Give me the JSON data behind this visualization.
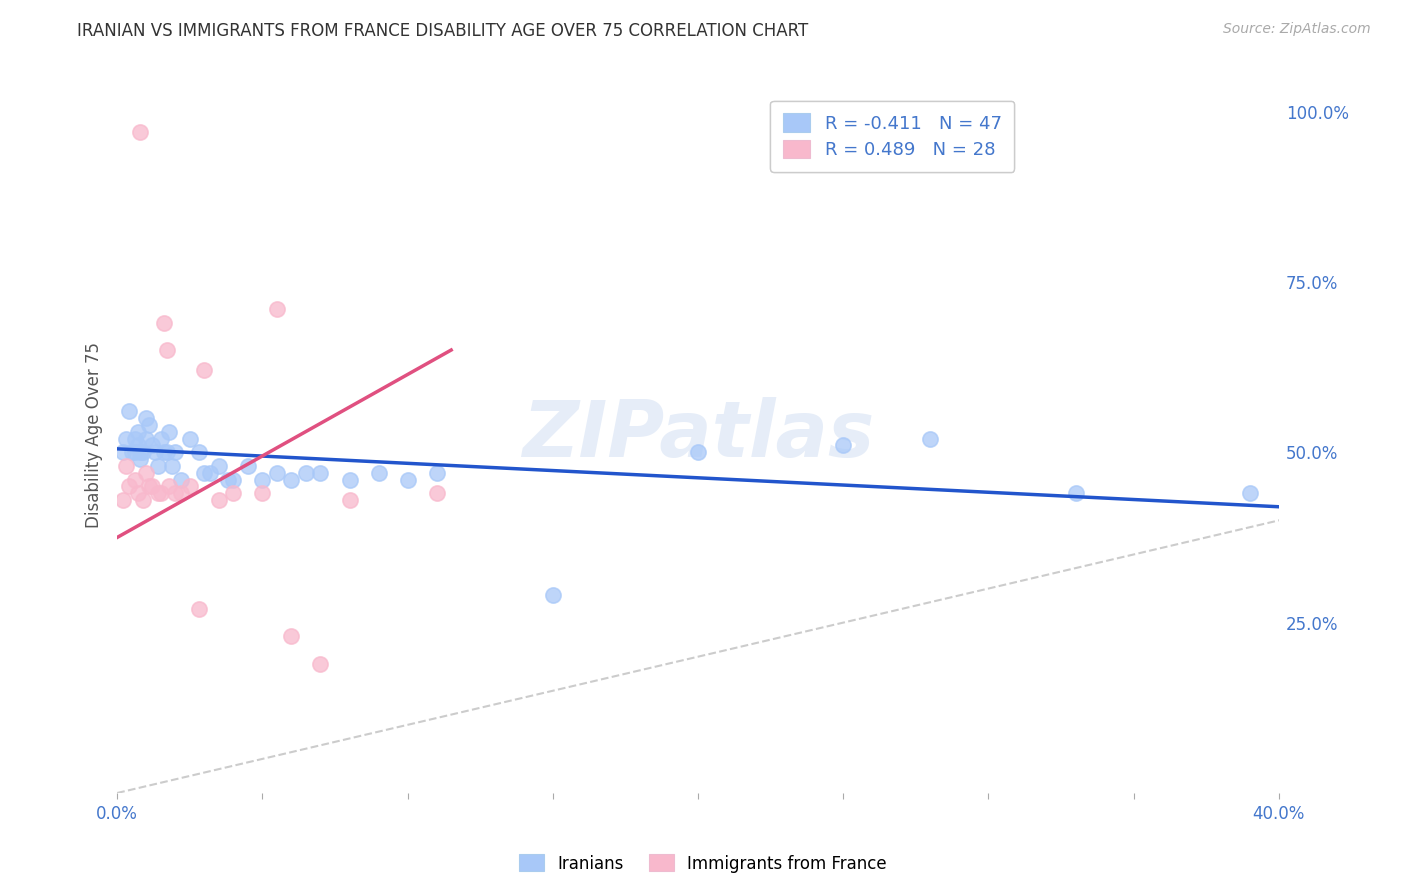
{
  "title": "IRANIAN VS IMMIGRANTS FROM FRANCE DISABILITY AGE OVER 75 CORRELATION CHART",
  "source": "Source: ZipAtlas.com",
  "ylabel": "Disability Age Over 75",
  "xlim": [
    0.0,
    0.4
  ],
  "ylim": [
    0.0,
    1.05
  ],
  "x_ticks": [
    0.0,
    0.05,
    0.1,
    0.15,
    0.2,
    0.25,
    0.3,
    0.35,
    0.4
  ],
  "x_tick_labels": [
    "0.0%",
    "",
    "",
    "",
    "",
    "",
    "",
    "",
    "40.0%"
  ],
  "y_ticks_right": [
    0.25,
    0.5,
    0.75,
    1.0
  ],
  "y_tick_labels_right": [
    "25.0%",
    "50.0%",
    "75.0%",
    "100.0%"
  ],
  "legend_entries": [
    {
      "label": "R = -0.411   N = 47",
      "color": "#a8c8f8"
    },
    {
      "label": "R = 0.489   N = 28",
      "color": "#f8b8cc"
    }
  ],
  "legend_labels_bottom": [
    "Iranians",
    "Immigrants from France"
  ],
  "iranians_color": "#a8c8f8",
  "france_color": "#f8b8cc",
  "trendline_iran_color": "#2255cc",
  "trendline_france_color": "#e05080",
  "diagonal_color": "#cccccc",
  "background_color": "#ffffff",
  "watermark": "ZIPatlas",
  "iranians_x": [
    0.002,
    0.003,
    0.004,
    0.005,
    0.006,
    0.006,
    0.007,
    0.007,
    0.008,
    0.008,
    0.009,
    0.01,
    0.01,
    0.011,
    0.012,
    0.013,
    0.014,
    0.015,
    0.016,
    0.017,
    0.018,
    0.019,
    0.02,
    0.022,
    0.025,
    0.028,
    0.03,
    0.032,
    0.035,
    0.038,
    0.04,
    0.045,
    0.05,
    0.055,
    0.06,
    0.065,
    0.07,
    0.08,
    0.09,
    0.1,
    0.11,
    0.15,
    0.2,
    0.25,
    0.28,
    0.33,
    0.39
  ],
  "iranians_y": [
    0.5,
    0.52,
    0.56,
    0.5,
    0.5,
    0.52,
    0.51,
    0.53,
    0.5,
    0.49,
    0.5,
    0.55,
    0.52,
    0.54,
    0.51,
    0.5,
    0.48,
    0.52,
    0.5,
    0.5,
    0.53,
    0.48,
    0.5,
    0.46,
    0.52,
    0.5,
    0.47,
    0.47,
    0.48,
    0.46,
    0.46,
    0.48,
    0.46,
    0.47,
    0.46,
    0.47,
    0.47,
    0.46,
    0.47,
    0.46,
    0.47,
    0.29,
    0.5,
    0.51,
    0.52,
    0.44,
    0.44
  ],
  "france_x": [
    0.002,
    0.003,
    0.004,
    0.006,
    0.007,
    0.008,
    0.009,
    0.01,
    0.011,
    0.012,
    0.014,
    0.015,
    0.016,
    0.017,
    0.018,
    0.02,
    0.022,
    0.025,
    0.028,
    0.03,
    0.035,
    0.04,
    0.05,
    0.055,
    0.06,
    0.07,
    0.08,
    0.11
  ],
  "france_y": [
    0.43,
    0.48,
    0.45,
    0.46,
    0.44,
    0.97,
    0.43,
    0.47,
    0.45,
    0.45,
    0.44,
    0.44,
    0.69,
    0.65,
    0.45,
    0.44,
    0.44,
    0.45,
    0.27,
    0.62,
    0.43,
    0.44,
    0.44,
    0.71,
    0.23,
    0.19,
    0.43,
    0.44
  ],
  "iran_trend_x0": 0.0,
  "iran_trend_y0": 0.505,
  "iran_trend_x1": 0.4,
  "iran_trend_y1": 0.42,
  "france_trend_x0": 0.0,
  "france_trend_y0": 0.375,
  "france_trend_x1": 0.115,
  "france_trend_y1": 0.65
}
